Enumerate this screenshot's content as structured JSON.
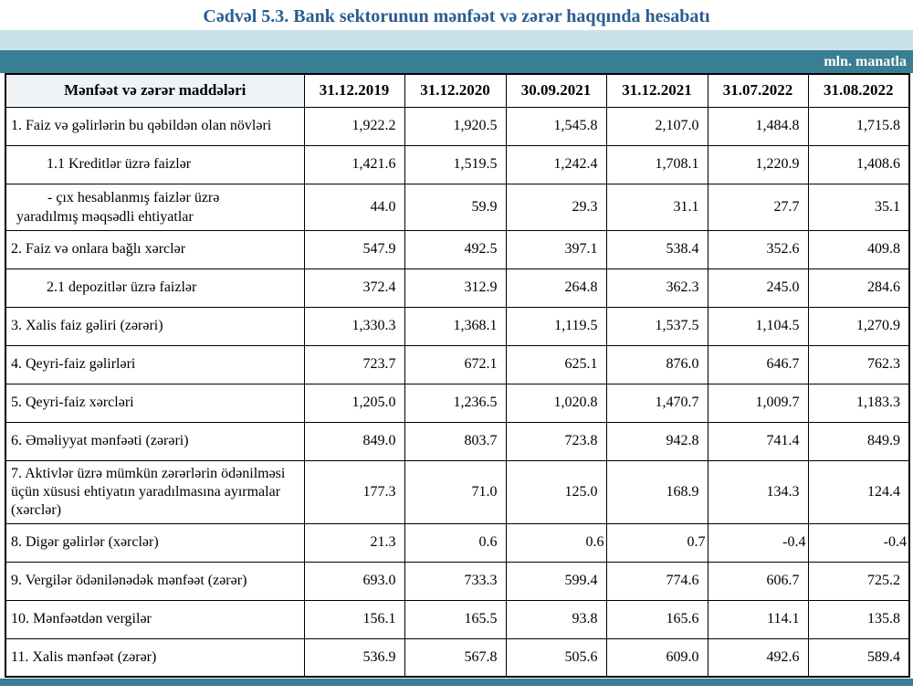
{
  "title": "Cədvəl 5.3. Bank sektorunun mənfəət və zərər haqqında hesabatı",
  "unit_label": "mln. manatla",
  "colors": {
    "title_text": "#2b5d92",
    "band_light": "#c9e2ea",
    "band_teal": "#3a7e93",
    "header_cell_bg": "#eff3f6",
    "border": "#000000"
  },
  "table": {
    "header": {
      "items_column": "Mənfəət və zərər maddələri",
      "date_columns": [
        "31.12.2019",
        "31.12.2020",
        "30.09.2021",
        "31.12.2021",
        "31.07.2022",
        "31.08.2022"
      ]
    },
    "rows": [
      {
        "label": "1. Faiz və gəlirlərin bu qəbildən olan növləri",
        "indent": 0,
        "values": [
          "1,922.2",
          "1,920.5",
          "1,545.8",
          "2,107.0",
          "1,484.8",
          "1,715.8"
        ]
      },
      {
        "label": "1.1 Kreditlər üzrə faizlər",
        "indent": 1,
        "values": [
          "1,421.6",
          "1,519.5",
          "1,242.4",
          "1,708.1",
          "1,220.9",
          "1,408.6"
        ]
      },
      {
        "label_lines": [
          "-  çıx hesablanmış faizlər üzrə",
          "yaradılmış məqsədli ehtiyatlar"
        ],
        "indent": 0,
        "size": "h2line",
        "values": [
          "44.0",
          "59.9",
          "29.3",
          "31.1",
          "27.7",
          "35.1"
        ]
      },
      {
        "label": "2. Faiz və onlara bağlı xərclər",
        "indent": 0,
        "values": [
          "547.9",
          "492.5",
          "397.1",
          "538.4",
          "352.6",
          "409.8"
        ]
      },
      {
        "label": "2.1 depozitlər üzrə faizlər",
        "indent": 1,
        "values": [
          "372.4",
          "312.9",
          "264.8",
          "362.3",
          "245.0",
          "284.6"
        ]
      },
      {
        "label": "3. Xalis faiz gəliri (zərəri)",
        "indent": 0,
        "values": [
          "1,330.3",
          "1,368.1",
          "1,119.5",
          "1,537.5",
          "1,104.5",
          "1,270.9"
        ]
      },
      {
        "label": "4. Qeyri-faiz gəlirləri",
        "indent": 0,
        "values": [
          "723.7",
          "672.1",
          "625.1",
          "876.0",
          "646.7",
          "762.3"
        ]
      },
      {
        "label": "5. Qeyri-faiz xərcləri",
        "indent": 0,
        "values": [
          "1,205.0",
          "1,236.5",
          "1,020.8",
          "1,470.7",
          "1,009.7",
          "1,183.3"
        ]
      },
      {
        "label": "6. Əməliyyat mənfəəti (zərəri)",
        "indent": 0,
        "values": [
          "849.0",
          "803.7",
          "723.8",
          "942.8",
          "741.4",
          "849.9"
        ]
      },
      {
        "label": "7. Aktivlər üzrə mümkün zərərlərin ödənilməsi üçün xüsusi ehtiyatın yaradılmasına ayırmalar (xərclər)",
        "indent": 0,
        "size": "h3line",
        "values": [
          "177.3",
          "71.0",
          "125.0",
          "168.9",
          "134.3",
          "124.4"
        ]
      },
      {
        "label": "8. Digər gəlirlər (xərclər)",
        "indent": 0,
        "size": "h47",
        "flush": [
          2,
          3,
          4,
          5
        ],
        "values": [
          "21.3",
          "0.6",
          "0.6",
          "0.7",
          "-0.4",
          "-0.4"
        ]
      },
      {
        "label": "9. Vergilər ödənilənədək mənfəət (zərər)",
        "indent": 0,
        "size": "h47",
        "values": [
          "693.0",
          "733.3",
          "599.4",
          "774.6",
          "606.7",
          "725.2"
        ]
      },
      {
        "label": "10. Mənfəətdən vergilər",
        "indent": 0,
        "values": [
          "156.1",
          "165.5",
          "93.8",
          "165.6",
          "114.1",
          "135.8"
        ]
      },
      {
        "label": "11. Xalis mənfəət (zərər)",
        "indent": 0,
        "values": [
          "536.9",
          "567.8",
          "505.6",
          "609.0",
          "492.6",
          "589.4"
        ]
      }
    ]
  }
}
